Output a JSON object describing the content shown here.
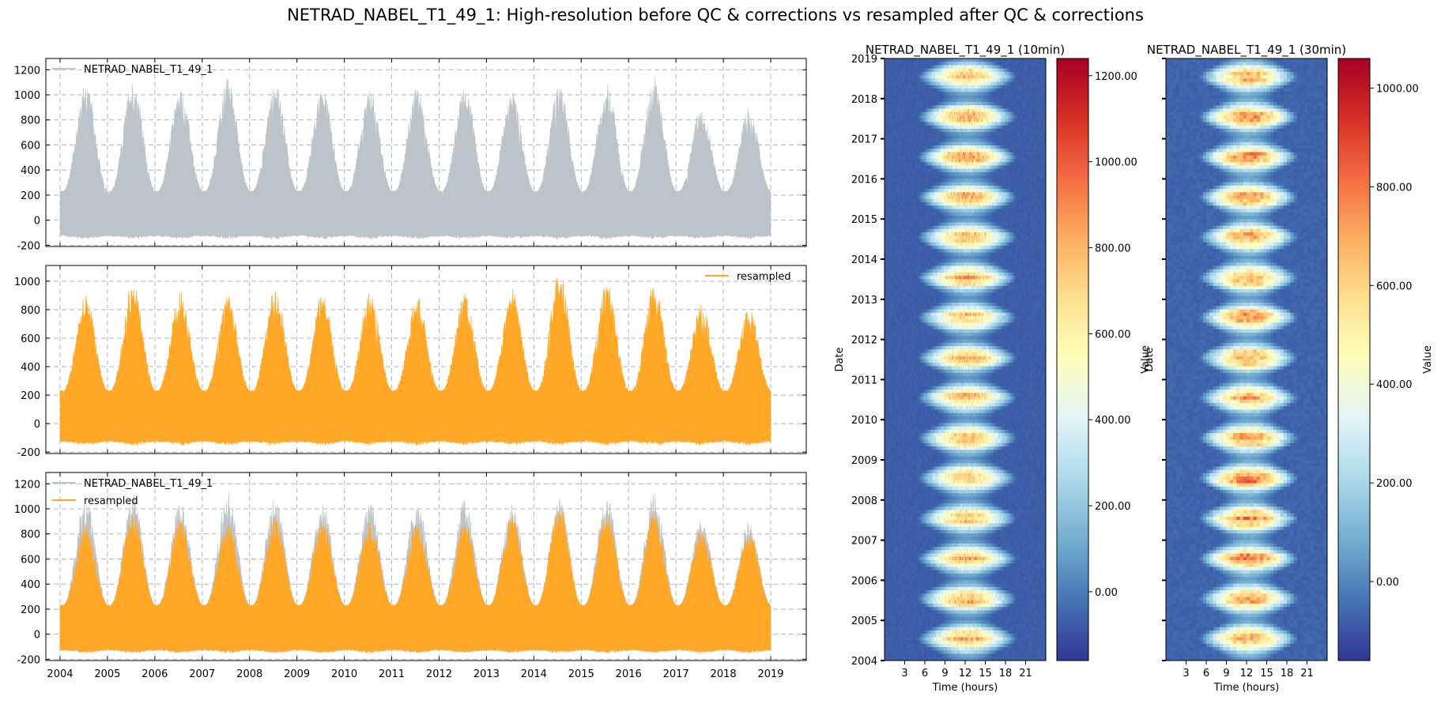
{
  "suptitle": "NETRAD_NABEL_T1_49_1: High-resolution before QC & corrections vs resampled after QC & corrections",
  "colors": {
    "raw": "#bcc4ca",
    "resampled": "#ffa726",
    "grid": "#a9b8c2"
  },
  "chart_data": [
    {
      "type": "area",
      "name": "ts-raw",
      "ylim": [
        -210,
        1290
      ],
      "yticks": [
        "-200",
        "0",
        "200",
        "400",
        "600",
        "800",
        "1000",
        "1200"
      ],
      "ytick_values": [
        -200,
        0,
        200,
        400,
        600,
        800,
        1000,
        1200
      ],
      "xlim": [
        2003.7,
        2019.75
      ],
      "legend": {
        "placement": "upper left",
        "entries": [
          "NETRAD_NABEL_T1_49_1"
        ]
      },
      "series": [
        {
          "name": "NETRAD_NABEL_T1_49_1",
          "color": "#bcc4ca",
          "x_start": 2004,
          "x_end": 2019,
          "night_min": -130,
          "annual_summer_peaks": [
            {
              "year": 2004,
              "peak": 1100
            },
            {
              "year": 2005,
              "peak": 1120
            },
            {
              "year": 2006,
              "peak": 1050
            },
            {
              "year": 2007,
              "peak": 1140
            },
            {
              "year": 2008,
              "peak": 1100
            },
            {
              "year": 2009,
              "peak": 1050
            },
            {
              "year": 2010,
              "peak": 1060
            },
            {
              "year": 2011,
              "peak": 1060
            },
            {
              "year": 2012,
              "peak": 1080
            },
            {
              "year": 2013,
              "peak": 1040
            },
            {
              "year": 2014,
              "peak": 1090
            },
            {
              "year": 2015,
              "peak": 1090
            },
            {
              "year": 2016,
              "peak": 1140
            },
            {
              "year": 2017,
              "peak": 910
            },
            {
              "year": 2018,
              "peak": 890
            }
          ]
        }
      ]
    },
    {
      "type": "area",
      "name": "ts-resampled",
      "ylim": [
        -210,
        1110
      ],
      "yticks": [
        "-200",
        "0",
        "200",
        "400",
        "600",
        "800",
        "1000"
      ],
      "ytick_values": [
        -200,
        0,
        200,
        400,
        600,
        800,
        1000
      ],
      "xlim": [
        2003.7,
        2019.75
      ],
      "legend": {
        "placement": "upper right",
        "entries": [
          "resampled"
        ]
      },
      "series": [
        {
          "name": "resampled",
          "color": "#ffa726",
          "x_start": 2004,
          "x_end": 2019,
          "night_min": -130,
          "annual_summer_peaks": [
            {
              "year": 2004,
              "peak": 900
            },
            {
              "year": 2005,
              "peak": 1000
            },
            {
              "year": 2006,
              "peak": 930
            },
            {
              "year": 2007,
              "peak": 900
            },
            {
              "year": 2008,
              "peak": 950
            },
            {
              "year": 2009,
              "peak": 920
            },
            {
              "year": 2010,
              "peak": 920
            },
            {
              "year": 2011,
              "peak": 900
            },
            {
              "year": 2012,
              "peak": 910
            },
            {
              "year": 2013,
              "peak": 950
            },
            {
              "year": 2014,
              "peak": 1060
            },
            {
              "year": 2015,
              "peak": 990
            },
            {
              "year": 2016,
              "peak": 990
            },
            {
              "year": 2017,
              "peak": 850
            },
            {
              "year": 2018,
              "peak": 820
            }
          ]
        }
      ]
    },
    {
      "type": "area",
      "name": "ts-overlay",
      "ylim": [
        -210,
        1290
      ],
      "yticks": [
        "-200",
        "0",
        "200",
        "400",
        "600",
        "800",
        "1000",
        "1200"
      ],
      "ytick_values": [
        -200,
        0,
        200,
        400,
        600,
        800,
        1000,
        1200
      ],
      "xlim": [
        2003.7,
        2019.75
      ],
      "xticks": [
        "2004",
        "2005",
        "2006",
        "2007",
        "2008",
        "2009",
        "2010",
        "2011",
        "2012",
        "2013",
        "2014",
        "2015",
        "2016",
        "2017",
        "2018",
        "2019"
      ],
      "legend": {
        "placement": "upper left",
        "entries": [
          "NETRAD_NABEL_T1_49_1",
          "resampled"
        ]
      },
      "series": [
        {
          "name": "NETRAD_NABEL_T1_49_1",
          "color": "#bcc4ca",
          "ref": "ts-raw"
        },
        {
          "name": "resampled",
          "color": "#ffa726",
          "ref": "ts-resampled"
        }
      ]
    },
    {
      "type": "heatmap",
      "name": "heatmap-10min",
      "title": "NETRAD_NABEL_T1_49_1 (10min)",
      "xlabel": "Time (hours)",
      "ylabel": "Date",
      "xticks": [
        "3",
        "6",
        "9",
        "12",
        "15",
        "18",
        "21"
      ],
      "xtick_values": [
        3,
        6,
        9,
        12,
        15,
        18,
        21
      ],
      "xlim": [
        0,
        24
      ],
      "yticks": [
        "2004",
        "2005",
        "2006",
        "2007",
        "2008",
        "2009",
        "2010",
        "2011",
        "2012",
        "2013",
        "2014",
        "2015",
        "2016",
        "2017",
        "2018",
        "2019"
      ],
      "ylim": [
        2004,
        2019
      ],
      "colorbar": {
        "label": "Value",
        "min": -160,
        "max": 1240,
        "ticks": [
          "0.00",
          "200.00",
          "400.00",
          "600.00",
          "800.00",
          "1000.00",
          "1200.00"
        ],
        "tick_values": [
          0,
          200,
          400,
          600,
          800,
          1000,
          1200
        ],
        "colormap": "RdYlBu_r"
      },
      "night_value": -70,
      "summer_noon_peak": 900
    },
    {
      "type": "heatmap",
      "name": "heatmap-30min",
      "title": "NETRAD_NABEL_T1_49_1 (30min)",
      "xlabel": "Time (hours)",
      "ylabel": "Date",
      "xticks": [
        "3",
        "6",
        "9",
        "12",
        "15",
        "18",
        "21"
      ],
      "xtick_values": [
        3,
        6,
        9,
        12,
        15,
        18,
        21
      ],
      "xlim": [
        0,
        24
      ],
      "ylim": [
        2004,
        2019
      ],
      "colorbar": {
        "label": "Value",
        "min": -160,
        "max": 1060,
        "ticks": [
          "0.00",
          "200.00",
          "400.00",
          "600.00",
          "800.00",
          "1000.00"
        ],
        "tick_values": [
          0,
          200,
          400,
          600,
          800,
          1000
        ],
        "colormap": "RdYlBu_r"
      },
      "night_value": -70,
      "summer_noon_peak": 840
    }
  ]
}
